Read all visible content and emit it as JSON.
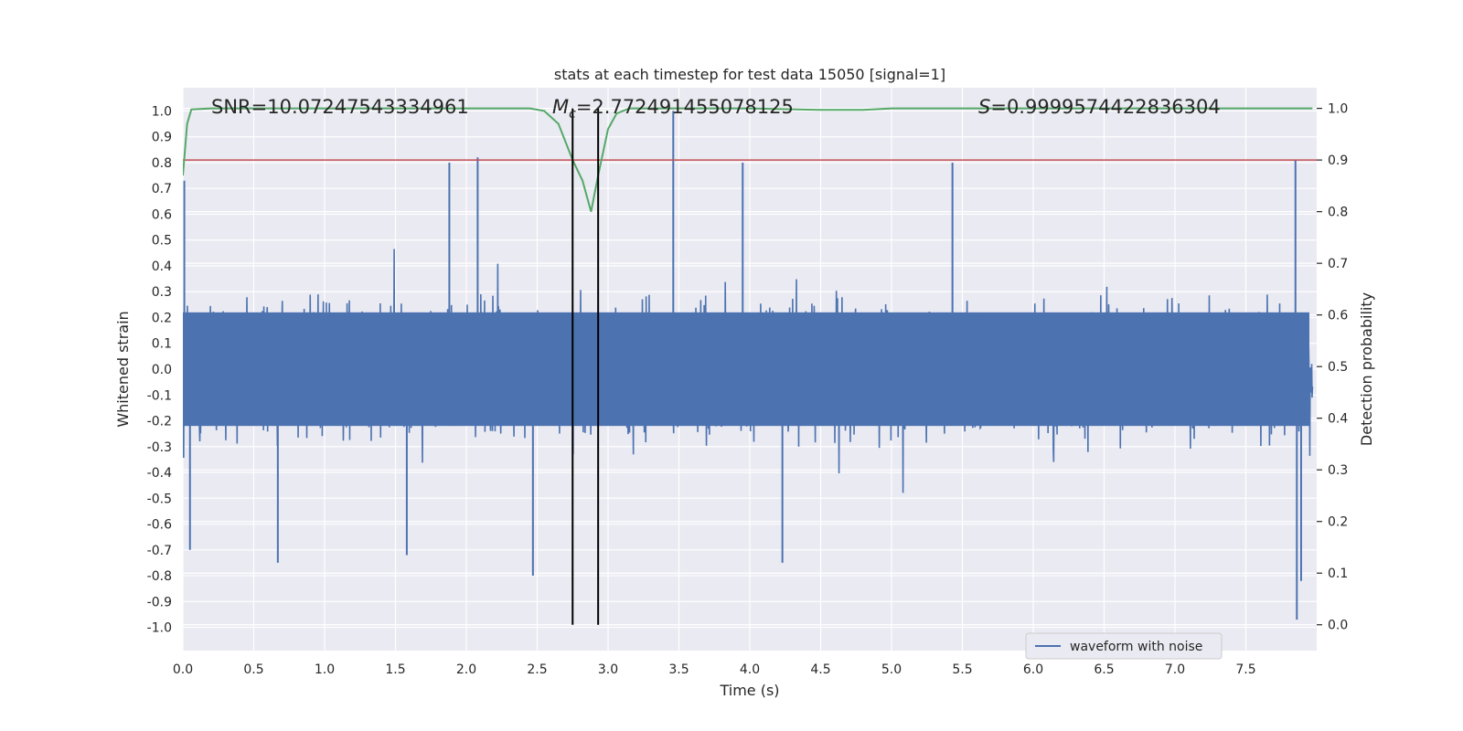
{
  "chart_data": {
    "type": "line",
    "title": "stats at each timestep for test data 15050 [signal=1]",
    "xlabel": "Time (s)",
    "ylabel": "Whitened strain",
    "y2label": "Detection probability",
    "xlim": [
      0.0,
      8.0
    ],
    "ylim": [
      -1.09,
      1.09
    ],
    "y2lim": [
      -0.05,
      1.04
    ],
    "x_ticks": [
      0.0,
      0.5,
      1.0,
      1.5,
      2.0,
      2.5,
      3.0,
      3.5,
      4.0,
      4.5,
      5.0,
      5.5,
      6.0,
      6.5,
      7.0,
      7.5
    ],
    "x_tick_labels": [
      "0.0",
      "0.5",
      "1.0",
      "1.5",
      "2.0",
      "2.5",
      "3.0",
      "3.5",
      "4.0",
      "4.5",
      "5.0",
      "5.5",
      "6.0",
      "6.5",
      "7.0",
      "7.5"
    ],
    "y_ticks": [
      1.0,
      0.9,
      0.8,
      0.7,
      0.6,
      0.5,
      0.4,
      0.3,
      0.2,
      0.1,
      0.0,
      -0.1,
      -0.2,
      -0.3,
      -0.4,
      -0.5,
      -0.6,
      -0.7,
      -0.8,
      -0.9,
      -1.0
    ],
    "y_tick_labels": [
      "1.0",
      "0.9",
      "0.8",
      "0.7",
      "0.6",
      "0.5",
      "0.4",
      "0.3",
      "0.2",
      "0.1",
      "0.0",
      "-0.1",
      "-0.2",
      "-0.3",
      "-0.4",
      "-0.5",
      "-0.6",
      "-0.7",
      "-0.8",
      "-0.9",
      "-1.0"
    ],
    "y2_ticks": [
      1.0,
      0.9,
      0.8,
      0.7,
      0.6,
      0.5,
      0.4,
      0.3,
      0.2,
      0.1,
      0.0
    ],
    "y2_tick_labels": [
      "1.0",
      "0.9",
      "0.8",
      "0.7",
      "0.6",
      "0.5",
      "0.4",
      "0.3",
      "0.2",
      "0.1",
      "0.0"
    ],
    "grid": true,
    "legend": {
      "position": "lower-right",
      "entries": [
        "waveform with noise"
      ]
    },
    "annotations": {
      "snr": "SNR=10.07247543334961",
      "mc_symbol": "M",
      "mc_subscript": "c",
      "mc_value": "=2.772491455078125",
      "s_symbol": "S",
      "s_value": "=0.9999574422836304"
    },
    "threshold": {
      "y2": 0.9,
      "color": "#c44e52"
    },
    "vertical_markers": {
      "x": [
        2.75,
        2.93
      ],
      "y2_range": [
        0.0,
        1.0
      ],
      "color": "#000000"
    },
    "series": [
      {
        "name": "waveform with noise",
        "axis": "left",
        "color": "#4c72b0",
        "kind": "noise",
        "approx_amplitude": 0.4,
        "peaks": [
          {
            "x": 0.01,
            "y": 0.73
          },
          {
            "x": 0.05,
            "y": -0.7
          },
          {
            "x": 0.67,
            "y": -0.75
          },
          {
            "x": 1.58,
            "y": -0.72
          },
          {
            "x": 1.88,
            "y": 0.8
          },
          {
            "x": 2.08,
            "y": 0.82
          },
          {
            "x": 2.47,
            "y": -0.8
          },
          {
            "x": 3.46,
            "y": 1.0
          },
          {
            "x": 3.95,
            "y": 0.8
          },
          {
            "x": 4.23,
            "y": -0.75
          },
          {
            "x": 5.43,
            "y": 0.8
          },
          {
            "x": 7.85,
            "y": 0.81
          },
          {
            "x": 7.86,
            "y": -0.97
          },
          {
            "x": 7.89,
            "y": -0.82
          }
        ]
      },
      {
        "name": "detection probability",
        "axis": "right",
        "color": "#55a868",
        "x": [
          0.0,
          0.03,
          0.06,
          0.2,
          1.0,
          2.0,
          2.45,
          2.55,
          2.65,
          2.75,
          2.82,
          2.88,
          2.93,
          3.0,
          3.06,
          3.15,
          3.5,
          4.0,
          4.5,
          4.8,
          5.0,
          6.0,
          7.0,
          7.97
        ],
        "values": [
          0.87,
          0.97,
          0.998,
          1.0,
          1.0,
          1.0,
          1.0,
          0.995,
          0.97,
          0.9,
          0.86,
          0.8,
          0.87,
          0.96,
          0.99,
          1.0,
          1.0,
          1.0,
          0.997,
          0.997,
          1.0,
          1.0,
          1.0,
          1.0
        ]
      }
    ]
  }
}
